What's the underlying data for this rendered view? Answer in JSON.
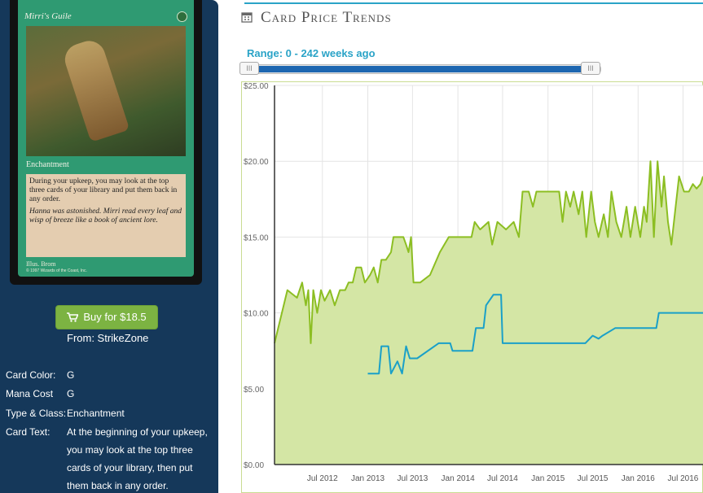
{
  "card": {
    "name": "Mirri's Guile",
    "type_line": "Enchantment",
    "rules_text": "During your upkeep, you may look at the top three cards of your library and put them back in any order.",
    "flavor_text": "Hanna was astonished. Mirri read every leaf and wisp of breeze like a book of ancient lore.",
    "artist": "Illus. Brom",
    "copyright": "© 1997 Wizards of the Coast, Inc."
  },
  "buy": {
    "label": "Buy for $18.5",
    "from": "From: StrikeZone",
    "icon": "shopping-cart-icon"
  },
  "details": [
    {
      "label": "Card Color:",
      "value": "G"
    },
    {
      "label": "Mana Cost",
      "value": "G"
    },
    {
      "label": "Type & Class:",
      "value": "Enchantment"
    },
    {
      "label": "Card Text:",
      "value": "At the beginning of your upkeep, you may look at the top three cards of your library, then put them back in any order."
    }
  ],
  "header": {
    "title": "Card Price Trends",
    "icon": "calendar-icon"
  },
  "range": {
    "label": "Range: 0 - 242 weeks ago",
    "handle_glyph": "III"
  },
  "colors": {
    "accent": "#2aa3c7",
    "green_line": "#8cbe22",
    "green_fill": "#d4e6a5",
    "blue_line": "#1aa0c8",
    "buy": "#7cb342",
    "sidebar": "#15385a"
  },
  "chart_data": {
    "type": "line",
    "title": "",
    "xlabel": "",
    "ylabel": "",
    "ylim": [
      0,
      25
    ],
    "xlim": [
      "2011-12-20",
      "2016-09-20"
    ],
    "y_ticks": [
      0,
      5,
      10,
      15,
      20,
      25
    ],
    "y_tick_labels": [
      "$0.00",
      "$5.00",
      "$10.00",
      "$15.00",
      "$20.00",
      "$25.00"
    ],
    "x_ticks": [
      "2012-07-01",
      "2013-01-01",
      "2013-07-01",
      "2014-01-01",
      "2014-07-01",
      "2015-01-01",
      "2015-07-01",
      "2016-01-01",
      "2016-07-01"
    ],
    "x_tick_labels": [
      "Jul 2012",
      "Jan 2013",
      "Jul 2013",
      "Jan 2014",
      "Jul 2014",
      "Jan 2015",
      "Jul 2015",
      "Jan 2016",
      "Jul 2016"
    ],
    "grid": true,
    "series": [
      {
        "style": "area",
        "color": "#8cbe22",
        "points": [
          [
            "2011-12-20",
            8
          ],
          [
            "2012-02-10",
            11.5
          ],
          [
            "2012-03-20",
            11
          ],
          [
            "2012-04-10",
            12
          ],
          [
            "2012-04-25",
            10.5
          ],
          [
            "2012-05-05",
            11.5
          ],
          [
            "2012-05-15",
            8
          ],
          [
            "2012-05-25",
            11.5
          ],
          [
            "2012-06-10",
            10
          ],
          [
            "2012-06-25",
            11.5
          ],
          [
            "2012-07-10",
            10.8
          ],
          [
            "2012-08-01",
            11.5
          ],
          [
            "2012-08-20",
            10.5
          ],
          [
            "2012-09-10",
            11.5
          ],
          [
            "2012-10-01",
            11.5
          ],
          [
            "2012-10-15",
            12
          ],
          [
            "2012-11-01",
            12
          ],
          [
            "2012-11-15",
            13
          ],
          [
            "2012-12-05",
            13
          ],
          [
            "2012-12-20",
            12
          ],
          [
            "2013-01-10",
            12.5
          ],
          [
            "2013-01-25",
            13
          ],
          [
            "2013-02-10",
            12
          ],
          [
            "2013-02-25",
            13.5
          ],
          [
            "2013-03-15",
            13.5
          ],
          [
            "2013-04-05",
            14
          ],
          [
            "2013-04-15",
            15
          ],
          [
            "2013-05-25",
            15
          ],
          [
            "2013-06-05",
            14.5
          ],
          [
            "2013-06-15",
            14
          ],
          [
            "2013-06-25",
            15
          ],
          [
            "2013-07-05",
            12
          ],
          [
            "2013-08-01",
            12
          ],
          [
            "2013-09-10",
            12.5
          ],
          [
            "2013-10-20",
            14
          ],
          [
            "2013-11-25",
            15
          ],
          [
            "2013-12-15",
            15
          ],
          [
            "2014-01-10",
            15
          ],
          [
            "2014-02-10",
            15
          ],
          [
            "2014-02-25",
            15
          ],
          [
            "2014-03-10",
            16
          ],
          [
            "2014-04-01",
            15.5
          ],
          [
            "2014-05-05",
            16
          ],
          [
            "2014-05-20",
            14.5
          ],
          [
            "2014-06-10",
            16
          ],
          [
            "2014-07-15",
            15.5
          ],
          [
            "2014-08-15",
            16
          ],
          [
            "2014-09-05",
            15
          ],
          [
            "2014-09-20",
            18
          ],
          [
            "2014-10-15",
            18
          ],
          [
            "2014-11-01",
            17
          ],
          [
            "2014-11-15",
            18
          ],
          [
            "2015-01-10",
            18
          ],
          [
            "2015-02-15",
            18
          ],
          [
            "2015-03-01",
            16
          ],
          [
            "2015-03-15",
            18
          ],
          [
            "2015-04-01",
            17
          ],
          [
            "2015-04-15",
            18
          ],
          [
            "2015-05-05",
            16.5
          ],
          [
            "2015-05-20",
            18
          ],
          [
            "2015-06-05",
            15
          ],
          [
            "2015-06-25",
            18
          ],
          [
            "2015-07-10",
            16
          ],
          [
            "2015-07-25",
            15
          ],
          [
            "2015-08-15",
            16.5
          ],
          [
            "2015-09-01",
            15
          ],
          [
            "2015-09-15",
            18
          ],
          [
            "2015-10-05",
            16
          ],
          [
            "2015-10-25",
            15
          ],
          [
            "2015-11-15",
            17
          ],
          [
            "2015-12-01",
            15
          ],
          [
            "2015-12-20",
            17
          ],
          [
            "2016-01-10",
            15
          ],
          [
            "2016-01-25",
            17
          ],
          [
            "2016-02-05",
            16
          ],
          [
            "2016-02-20",
            20
          ],
          [
            "2016-03-05",
            15
          ],
          [
            "2016-03-20",
            20
          ],
          [
            "2016-04-05",
            17
          ],
          [
            "2016-04-15",
            19
          ],
          [
            "2016-05-01",
            16
          ],
          [
            "2016-05-15",
            14.5
          ],
          [
            "2016-06-01",
            17
          ],
          [
            "2016-06-15",
            19
          ],
          [
            "2016-07-05",
            18
          ],
          [
            "2016-07-25",
            18
          ],
          [
            "2016-08-10",
            18.5
          ],
          [
            "2016-08-25",
            18.2
          ],
          [
            "2016-09-10",
            18.5
          ],
          [
            "2016-09-20",
            19
          ]
        ]
      },
      {
        "style": "line",
        "color": "#1aa0c8",
        "points": [
          [
            "2013-01-01",
            6
          ],
          [
            "2013-02-15",
            6
          ],
          [
            "2013-02-25",
            7.8
          ],
          [
            "2013-03-25",
            7.8
          ],
          [
            "2013-04-05",
            6
          ],
          [
            "2013-05-01",
            6.8
          ],
          [
            "2013-05-20",
            6
          ],
          [
            "2013-06-05",
            7.8
          ],
          [
            "2013-06-20",
            7
          ],
          [
            "2013-07-20",
            7
          ],
          [
            "2013-10-15",
            8
          ],
          [
            "2013-12-01",
            8
          ],
          [
            "2013-12-10",
            7.5
          ],
          [
            "2014-03-01",
            7.5
          ],
          [
            "2014-03-15",
            9
          ],
          [
            "2014-04-15",
            9
          ],
          [
            "2014-04-25",
            10.5
          ],
          [
            "2014-05-25",
            11.2
          ],
          [
            "2014-06-25",
            11.2
          ],
          [
            "2014-07-01",
            8
          ],
          [
            "2015-06-01",
            8
          ],
          [
            "2015-07-01",
            8.5
          ],
          [
            "2015-07-25",
            8.3
          ],
          [
            "2015-08-10",
            8.5
          ],
          [
            "2015-10-01",
            9
          ],
          [
            "2016-03-15",
            9
          ],
          [
            "2016-03-25",
            10
          ],
          [
            "2016-09-20",
            10
          ]
        ]
      }
    ]
  }
}
